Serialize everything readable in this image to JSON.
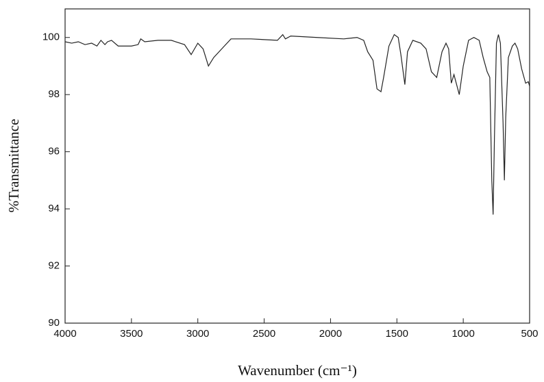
{
  "chart_data": {
    "type": "line",
    "xlabel": "Wavenumber (cm⁻¹)",
    "ylabel": "%Transmittance",
    "x": [
      4000,
      3950,
      3900,
      3850,
      3800,
      3760,
      3730,
      3700,
      3680,
      3650,
      3600,
      3500,
      3450,
      3430,
      3400,
      3300,
      3200,
      3100,
      3050,
      3000,
      2960,
      2920,
      2880,
      2800,
      2750,
      2600,
      2400,
      2360,
      2340,
      2300,
      2100,
      1900,
      1800,
      1750,
      1720,
      1680,
      1650,
      1620,
      1600,
      1560,
      1520,
      1490,
      1470,
      1440,
      1420,
      1380,
      1320,
      1280,
      1240,
      1200,
      1160,
      1130,
      1110,
      1090,
      1070,
      1050,
      1030,
      1000,
      960,
      920,
      880,
      850,
      820,
      800,
      785,
      775,
      765,
      750,
      735,
      720,
      700,
      690,
      680,
      660,
      630,
      610,
      590,
      560,
      530,
      510,
      500
    ],
    "series": [
      {
        "color": "#222222",
        "values": [
          99.85,
          99.8,
          99.85,
          99.75,
          99.8,
          99.7,
          99.9,
          99.75,
          99.85,
          99.9,
          99.7,
          99.7,
          99.75,
          99.95,
          99.85,
          99.9,
          99.9,
          99.75,
          99.4,
          99.8,
          99.6,
          99.0,
          99.3,
          99.7,
          99.95,
          99.95,
          99.9,
          100.1,
          99.95,
          100.05,
          100.0,
          99.95,
          100.0,
          99.9,
          99.5,
          99.2,
          98.2,
          98.1,
          98.6,
          99.7,
          100.1,
          100.0,
          99.4,
          98.35,
          99.5,
          99.9,
          99.8,
          99.6,
          98.8,
          98.6,
          99.5,
          99.8,
          99.6,
          98.4,
          98.7,
          98.35,
          98.0,
          99.0,
          99.9,
          100.0,
          99.9,
          99.3,
          98.8,
          98.6,
          95.0,
          93.8,
          96.5,
          99.8,
          100.1,
          99.8,
          97.0,
          95.0,
          97.2,
          99.3,
          99.7,
          99.8,
          99.6,
          98.9,
          98.4,
          98.45,
          98.3
        ]
      }
    ],
    "xlim": [
      4000,
      500
    ],
    "xticks": [
      4000,
      3500,
      3000,
      2500,
      2000,
      1500,
      1000,
      500
    ],
    "ylim": [
      90,
      101
    ],
    "yticks": [
      90,
      92,
      94,
      96,
      98,
      100
    ]
  }
}
